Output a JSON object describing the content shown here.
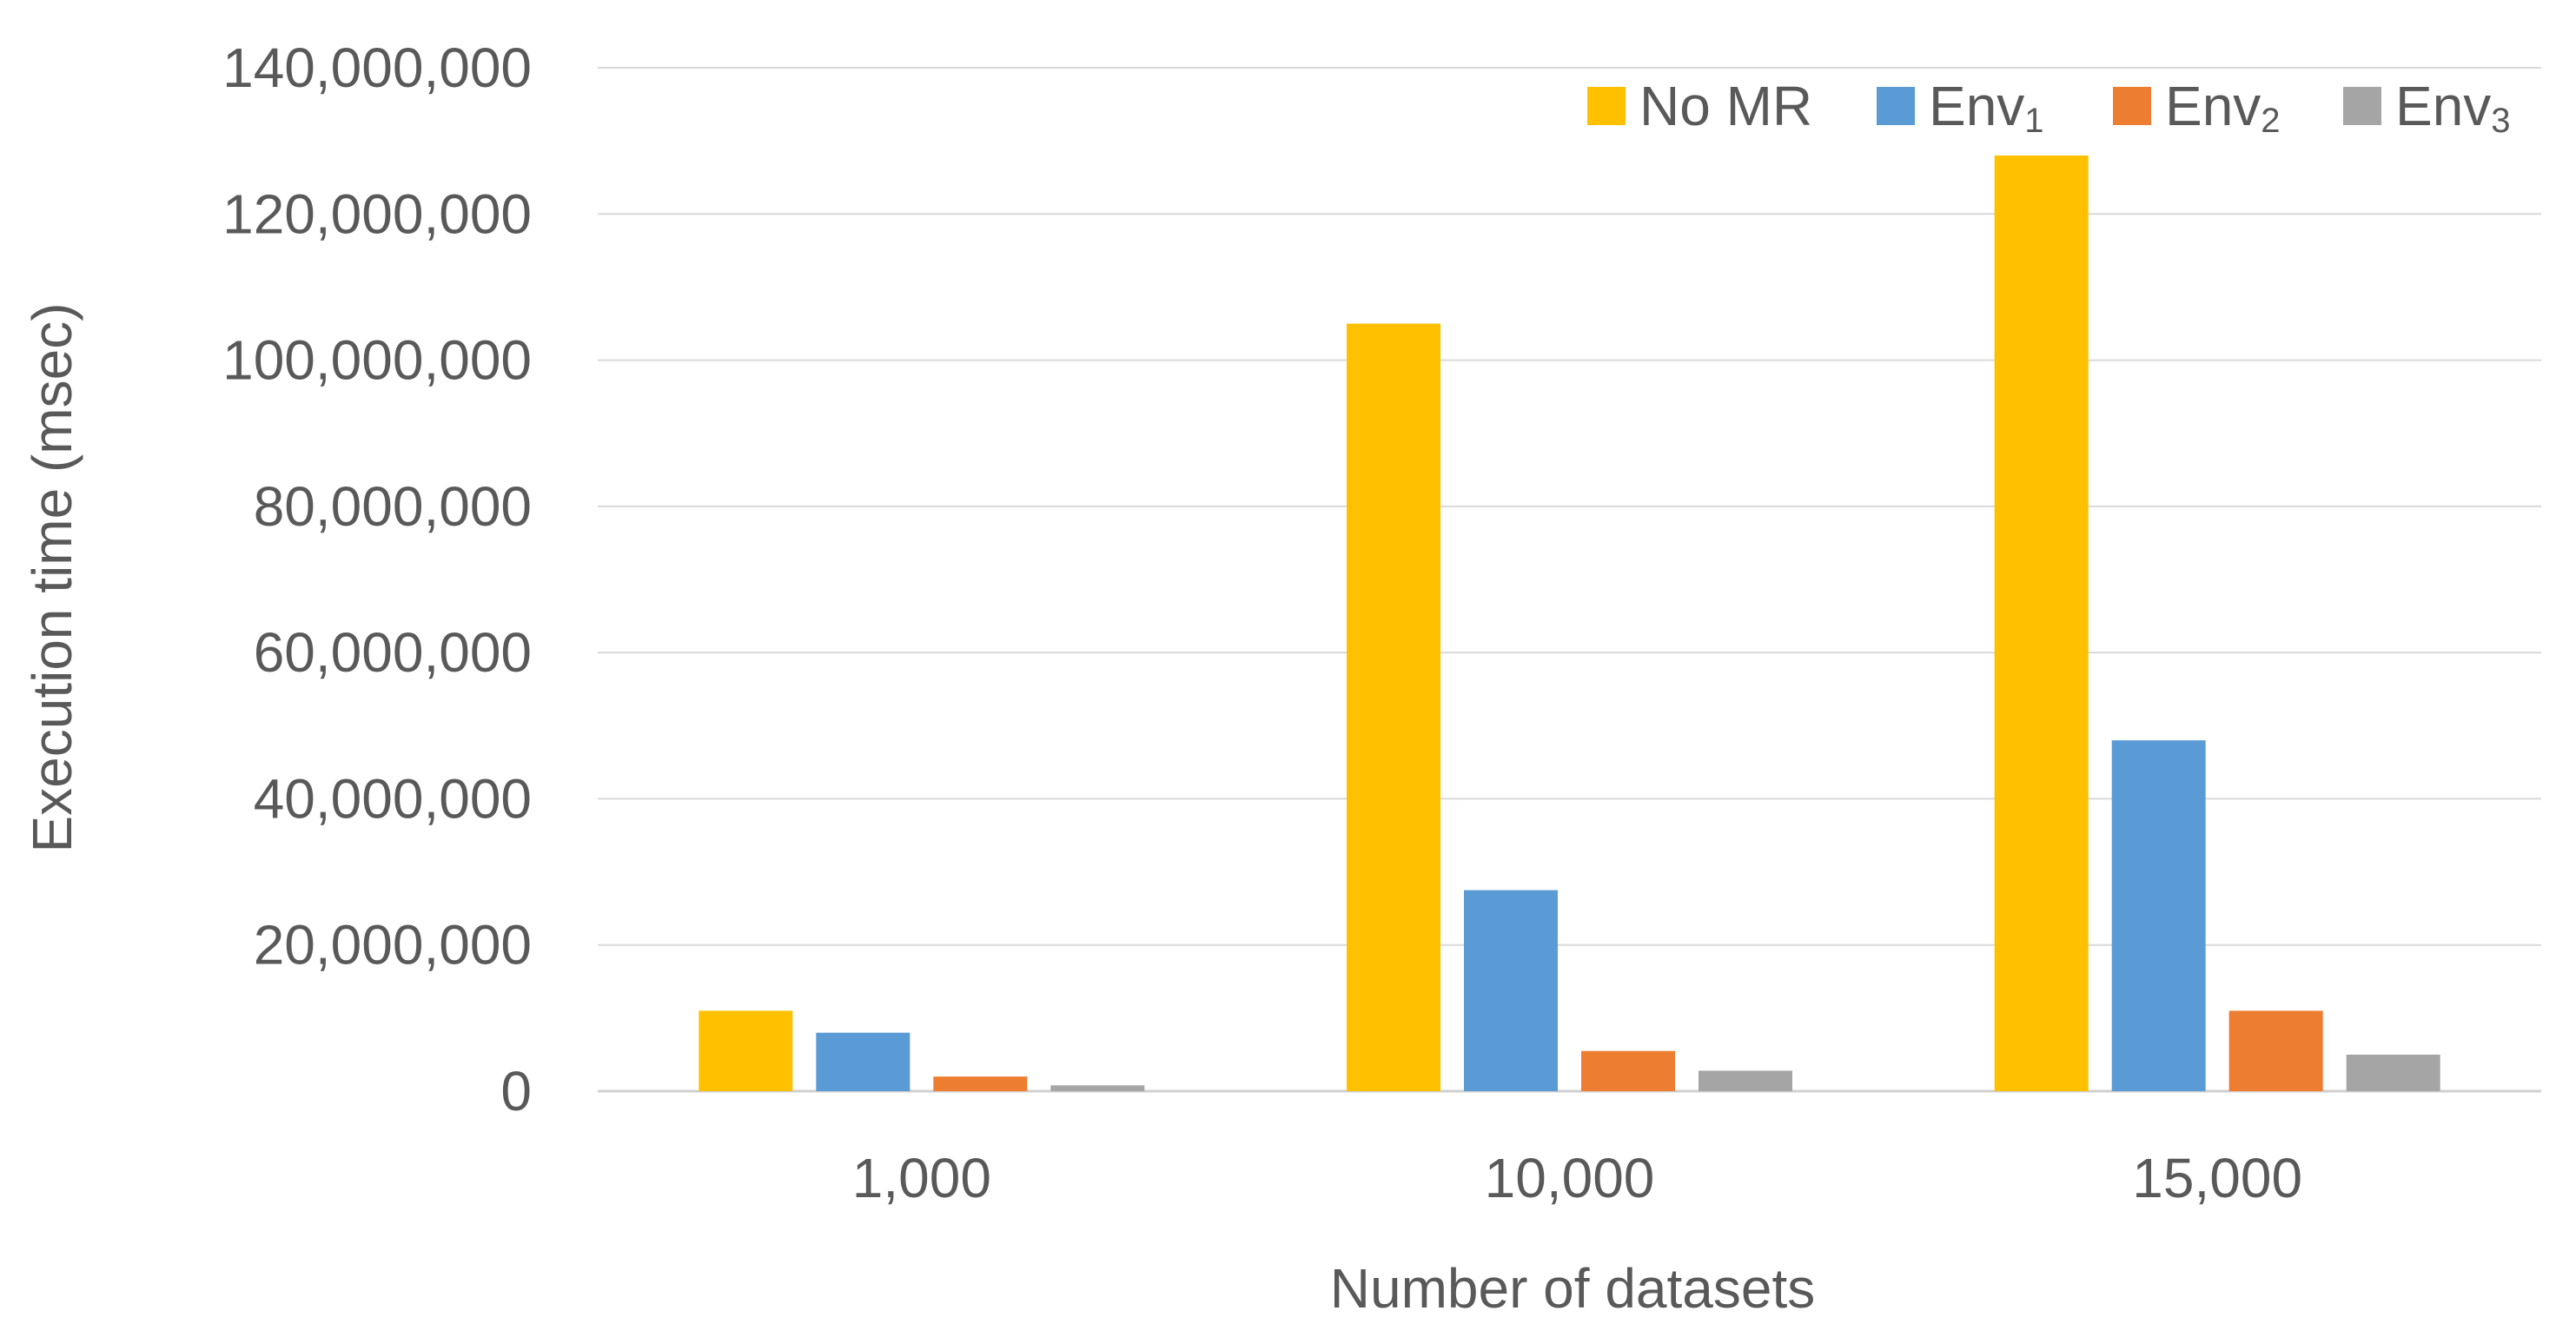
{
  "chart_data": {
    "type": "bar",
    "title": "",
    "xlabel": "Number of datasets",
    "ylabel": "Execution time (msec)",
    "categories": [
      "1,000",
      "10,000",
      "15,000"
    ],
    "ylim": [
      0,
      140000000
    ],
    "yticks": [
      0,
      20000000,
      40000000,
      60000000,
      80000000,
      100000000,
      120000000,
      140000000
    ],
    "ytick_labels": [
      "0",
      "20,000,000",
      "40,000,000",
      "60,000,000",
      "80,000,000",
      "100,000,000",
      "120,000,000",
      "140,000,000"
    ],
    "grid": true,
    "legend_position": "top-right",
    "series": [
      {
        "name": "No MR",
        "name_base": "No MR",
        "name_sub": "",
        "color": "#FFC000",
        "values": [
          11000000,
          105000000,
          128000000
        ]
      },
      {
        "name": "Env1",
        "name_base": "Env",
        "name_sub": "1",
        "color": "#5B9BD5",
        "values": [
          8000000,
          27500000,
          48000000
        ]
      },
      {
        "name": "Env2",
        "name_base": "Env",
        "name_sub": "2",
        "color": "#ED7D31",
        "values": [
          2000000,
          5500000,
          11000000
        ]
      },
      {
        "name": "Env3",
        "name_base": "Env",
        "name_sub": "3",
        "color": "#A5A5A5",
        "values": [
          800000,
          2800000,
          5000000
        ]
      }
    ]
  }
}
